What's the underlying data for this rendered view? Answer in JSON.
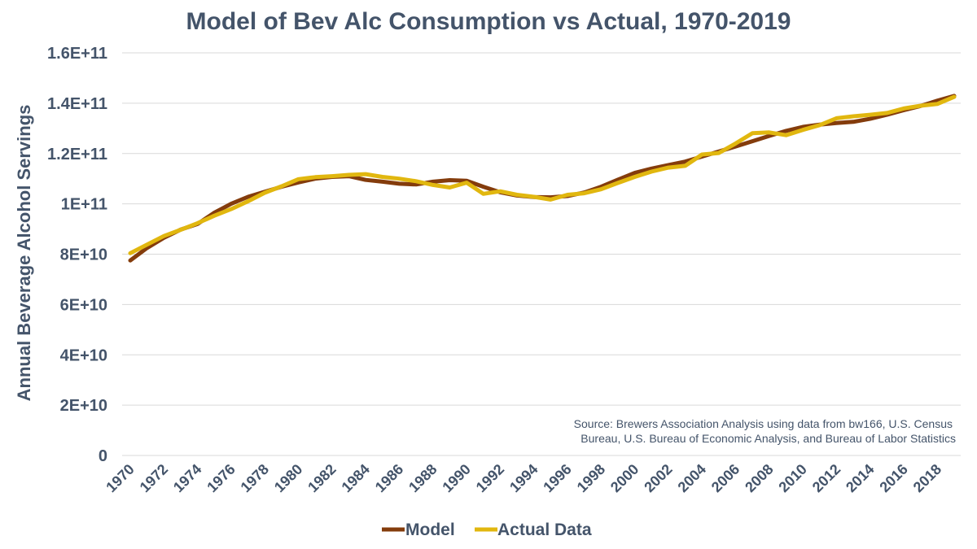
{
  "chart_data": {
    "type": "line",
    "title": "Model of Bev Alc Consumption vs Actual, 1970-2019",
    "ylabel": "Annual Beverage Alcohol Servings",
    "xlabel": "",
    "ylim": [
      0,
      160000000000
    ],
    "yticks": [
      0,
      20000000000,
      40000000000,
      60000000000,
      80000000000,
      100000000000,
      120000000000,
      140000000000,
      160000000000
    ],
    "ytick_labels": [
      "0",
      "2E+10",
      "4E+10",
      "6E+10",
      "8E+10",
      "1E+11",
      "1.2E+11",
      "1.4E+11",
      "1.6E+11"
    ],
    "x": [
      1970,
      1971,
      1972,
      1973,
      1974,
      1975,
      1976,
      1977,
      1978,
      1979,
      1980,
      1981,
      1982,
      1983,
      1984,
      1985,
      1986,
      1987,
      1988,
      1989,
      1990,
      1991,
      1992,
      1993,
      1994,
      1995,
      1996,
      1997,
      1998,
      1999,
      2000,
      2001,
      2002,
      2003,
      2004,
      2005,
      2006,
      2007,
      2008,
      2009,
      2010,
      2011,
      2012,
      2013,
      2014,
      2015,
      2016,
      2017,
      2018,
      2019
    ],
    "xtick_labels": [
      "1970",
      "1972",
      "1974",
      "1976",
      "1978",
      "1980",
      "1982",
      "1984",
      "1986",
      "1988",
      "1990",
      "1992",
      "1994",
      "1996",
      "1998",
      "2000",
      "2002",
      "2004",
      "2006",
      "2008",
      "2010",
      "2012",
      "2014",
      "2016",
      "2018"
    ],
    "series": [
      {
        "name": "Model",
        "color": "#843C0C",
        "values": [
          77500000000,
          82500000000,
          86500000000,
          89800000000,
          92000000000,
          96500000000,
          100000000000,
          102800000000,
          104800000000,
          106800000000,
          108500000000,
          110000000000,
          110700000000,
          111000000000,
          109500000000,
          108800000000,
          108000000000,
          107700000000,
          108800000000,
          109400000000,
          109200000000,
          106800000000,
          104600000000,
          103300000000,
          102700000000,
          102600000000,
          103100000000,
          104500000000,
          106800000000,
          109600000000,
          112300000000,
          114000000000,
          115400000000,
          116800000000,
          118800000000,
          120800000000,
          122800000000,
          124900000000,
          127000000000,
          129000000000,
          130600000000,
          131500000000,
          132100000000,
          132600000000,
          133800000000,
          135400000000,
          137200000000,
          138900000000,
          141000000000,
          142900000000
        ]
      },
      {
        "name": "Actual Data",
        "color": "#E1B70F",
        "values": [
          80400000000,
          83800000000,
          87200000000,
          89700000000,
          92300000000,
          95300000000,
          97900000000,
          101000000000,
          104400000000,
          107000000000,
          109800000000,
          110600000000,
          111000000000,
          111500000000,
          111800000000,
          110700000000,
          110000000000,
          109000000000,
          107500000000,
          106500000000,
          108400000000,
          104000000000,
          105000000000,
          103600000000,
          102800000000,
          101700000000,
          103600000000,
          104200000000,
          105800000000,
          108300000000,
          110700000000,
          112800000000,
          114400000000,
          115100000000,
          119600000000,
          120200000000,
          124000000000,
          128100000000,
          128400000000,
          127300000000,
          129400000000,
          131300000000,
          134000000000,
          134800000000,
          135400000000,
          136100000000,
          137900000000,
          139000000000,
          139700000000,
          142500000000
        ]
      }
    ],
    "annotation": [
      "Source: Brewers Association Analysis using data from bw166, U.S. Census",
      "Bureau, U.S. Bureau of Economic Analysis, and Bureau of Labor Statistics"
    ],
    "grid": true,
    "legend_position": "bottom"
  }
}
